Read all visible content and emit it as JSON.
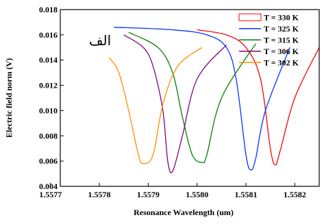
{
  "chart_data": {
    "type": "line",
    "title": "",
    "xlabel": "Resonance Wavelength (um)",
    "ylabel": "Electric field norm (V)",
    "xlim": [
      1.55772,
      1.55825
    ],
    "ylim": [
      0.004,
      0.018
    ],
    "xticks": [
      "1.5577",
      "1.5578",
      "1.5579",
      "1.5580",
      "1.5581",
      "1.5582"
    ],
    "yticks": [
      "0.004",
      "0.006",
      "0.008",
      "0.010",
      "0.012",
      "0.014",
      "0.016",
      "0.018"
    ],
    "grid": false,
    "legend_position": "top-right",
    "annotation": "الف",
    "series": [
      {
        "name": "T = 330 K",
        "color": "#ff0000",
        "x": [
          1.558,
          1.55806,
          1.5581,
          1.55813,
          1.55815,
          1.55816,
          1.55817,
          1.5582,
          1.55825
        ],
        "y": [
          0.0164,
          0.016,
          0.015,
          0.0125,
          0.007,
          0.0057,
          0.0068,
          0.011,
          0.015
        ]
      },
      {
        "name": "T = 325 K",
        "color": "#0033ff",
        "x": [
          1.55783,
          1.55795,
          1.55802,
          1.55806,
          1.55808,
          1.5581,
          1.55811,
          1.55812,
          1.55814,
          1.55819
        ],
        "y": [
          0.0166,
          0.0164,
          0.016,
          0.015,
          0.0125,
          0.0065,
          0.0053,
          0.0062,
          0.01,
          0.015
        ]
      },
      {
        "name": "T = 315 K",
        "color": "#008000",
        "x": [
          1.55786,
          1.55792,
          1.55795,
          1.55797,
          1.55799,
          1.55801,
          1.55802,
          1.55805,
          1.55812
        ],
        "y": [
          0.0162,
          0.015,
          0.013,
          0.0095,
          0.0065,
          0.0059,
          0.0065,
          0.011,
          0.0153
        ]
      },
      {
        "name": "T = 306 K",
        "color": "#800080",
        "x": [
          1.55785,
          1.55789,
          1.55791,
          1.55793,
          1.55794,
          1.55795,
          1.55797,
          1.558,
          1.55806
        ],
        "y": [
          0.016,
          0.015,
          0.0135,
          0.01,
          0.006,
          0.0052,
          0.008,
          0.0125,
          0.0152
        ]
      },
      {
        "name": "T = 302 K",
        "color": "#ff8c00",
        "x": [
          1.55782,
          1.55784,
          1.55786,
          1.55788,
          1.55789,
          1.55791,
          1.55793,
          1.55796,
          1.55801
        ],
        "y": [
          0.0142,
          0.013,
          0.01,
          0.0065,
          0.0058,
          0.0065,
          0.0105,
          0.0135,
          0.015
        ]
      }
    ]
  }
}
